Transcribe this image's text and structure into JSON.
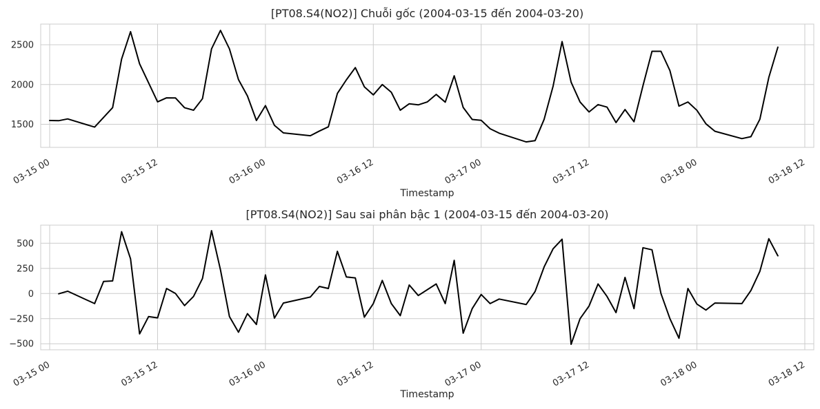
{
  "chart_data": [
    {
      "type": "line",
      "title": "[PT08.S4(NO2)] Chuỗi gốc (2004-03-15 đến 2004-03-20)",
      "xlabel": "Timestamp",
      "ylabel": "",
      "grid": true,
      "legend": "none",
      "line_color": "#000000",
      "x_start": "2004-03-14 23:00",
      "x_end": "2004-03-18 13:00",
      "ylim": [
        1210,
        2760
      ],
      "xticks": [
        {
          "time": "2004-03-15 00:00",
          "label": "03-15 00"
        },
        {
          "time": "2004-03-15 12:00",
          "label": "03-15 12"
        },
        {
          "time": "2004-03-16 00:00",
          "label": "03-16 00"
        },
        {
          "time": "2004-03-16 12:00",
          "label": "03-16 12"
        },
        {
          "time": "2004-03-17 00:00",
          "label": "03-17 00"
        },
        {
          "time": "2004-03-17 12:00",
          "label": "03-17 12"
        },
        {
          "time": "2004-03-18 00:00",
          "label": "03-18 00"
        },
        {
          "time": "2004-03-18 12:00",
          "label": "03-18 12"
        }
      ],
      "yticks": [
        {
          "value": 1500,
          "label": "1500"
        },
        {
          "value": 2000,
          "label": "2000"
        },
        {
          "value": 2500,
          "label": "2500"
        }
      ],
      "series": [
        {
          "x": [
            "2004-03-15 00:00",
            "2004-03-15 01:00",
            "2004-03-15 02:00",
            "2004-03-15 05:00",
            "2004-03-15 07:00",
            "2004-03-15 08:00",
            "2004-03-15 09:00",
            "2004-03-15 10:00",
            "2004-03-15 12:00",
            "2004-03-15 13:00",
            "2004-03-15 14:00",
            "2004-03-15 15:00",
            "2004-03-15 16:00",
            "2004-03-15 17:00",
            "2004-03-15 18:00",
            "2004-03-15 19:00",
            "2004-03-15 20:00",
            "2004-03-15 21:00",
            "2004-03-15 22:00",
            "2004-03-15 23:00",
            "2004-03-16 00:00",
            "2004-03-16 01:00",
            "2004-03-16 02:00",
            "2004-03-16 05:00",
            "2004-03-16 06:00",
            "2004-03-16 07:00",
            "2004-03-16 08:00",
            "2004-03-16 09:00",
            "2004-03-16 10:00",
            "2004-03-16 11:00",
            "2004-03-16 12:00",
            "2004-03-16 13:00",
            "2004-03-16 14:00",
            "2004-03-16 15:00",
            "2004-03-16 16:00",
            "2004-03-16 17:00",
            "2004-03-16 18:00",
            "2004-03-16 19:00",
            "2004-03-16 20:00",
            "2004-03-16 21:00",
            "2004-03-16 22:00",
            "2004-03-16 23:00",
            "2004-03-17 00:00",
            "2004-03-17 01:00",
            "2004-03-17 02:00",
            "2004-03-17 05:00",
            "2004-03-17 06:00",
            "2004-03-17 07:00",
            "2004-03-17 08:00",
            "2004-03-17 09:00",
            "2004-03-17 10:00",
            "2004-03-17 11:00",
            "2004-03-17 12:00",
            "2004-03-17 13:00",
            "2004-03-17 14:00",
            "2004-03-17 15:00",
            "2004-03-17 16:00",
            "2004-03-17 17:00",
            "2004-03-17 18:00",
            "2004-03-17 19:00",
            "2004-03-17 20:00",
            "2004-03-17 21:00",
            "2004-03-17 22:00",
            "2004-03-17 23:00",
            "2004-03-18 00:00",
            "2004-03-18 01:00",
            "2004-03-18 02:00",
            "2004-03-18 05:00",
            "2004-03-18 06:00",
            "2004-03-18 07:00",
            "2004-03-18 08:00",
            "2004-03-18 09:00"
          ],
          "values": [
            1548,
            1545,
            1568,
            1465,
            1710,
            2320,
            2665,
            2260,
            1782,
            1833,
            1831,
            1709,
            1677,
            1822,
            2448,
            2680,
            2448,
            2062,
            1856,
            1548,
            1735,
            1487,
            1392,
            1356,
            1415,
            1468,
            1888,
            2059,
            2213,
            1971,
            1870,
            2000,
            1903,
            1677,
            1758,
            1744,
            1781,
            1876,
            1778,
            2110,
            1712,
            1561,
            1550,
            1444,
            1388,
            1278,
            1295,
            1562,
            1980,
            2540,
            2030,
            1780,
            1655,
            1748,
            1716,
            1522,
            1685,
            1532,
            1985,
            2418,
            2418,
            2175,
            1729,
            1781,
            1676,
            1506,
            1413,
            1320,
            1344,
            1563,
            2090,
            2470
          ]
        }
      ]
    },
    {
      "type": "line",
      "title": "[PT08.S4(NO2)] Sau sai phân bậc 1 (2004-03-15 đến 2004-03-20)",
      "xlabel": "Timestamp",
      "ylabel": "",
      "grid": true,
      "legend": "none",
      "line_color": "#000000",
      "x_start": "2004-03-14 23:00",
      "x_end": "2004-03-18 13:00",
      "ylim": [
        -560,
        680
      ],
      "xticks": [
        {
          "time": "2004-03-15 00:00",
          "label": "03-15 00"
        },
        {
          "time": "2004-03-15 12:00",
          "label": "03-15 12"
        },
        {
          "time": "2004-03-16 00:00",
          "label": "03-16 00"
        },
        {
          "time": "2004-03-16 12:00",
          "label": "03-16 12"
        },
        {
          "time": "2004-03-17 00:00",
          "label": "03-17 00"
        },
        {
          "time": "2004-03-17 12:00",
          "label": "03-17 12"
        },
        {
          "time": "2004-03-18 00:00",
          "label": "03-18 00"
        },
        {
          "time": "2004-03-18 12:00",
          "label": "03-18 12"
        }
      ],
      "yticks": [
        {
          "value": -500,
          "label": "−500"
        },
        {
          "value": -250,
          "label": "−250"
        },
        {
          "value": 0,
          "label": "0"
        },
        {
          "value": 250,
          "label": "250"
        },
        {
          "value": 500,
          "label": "500"
        }
      ],
      "series": [
        {
          "x": [
            "2004-03-15 01:00",
            "2004-03-15 02:00",
            "2004-03-15 05:00",
            "2004-03-15 06:00",
            "2004-03-15 07:00",
            "2004-03-15 08:00",
            "2004-03-15 09:00",
            "2004-03-15 10:00",
            "2004-03-15 11:00",
            "2004-03-15 12:00",
            "2004-03-15 13:00",
            "2004-03-15 14:00",
            "2004-03-15 15:00",
            "2004-03-15 16:00",
            "2004-03-15 17:00",
            "2004-03-15 18:00",
            "2004-03-15 19:00",
            "2004-03-15 20:00",
            "2004-03-15 21:00",
            "2004-03-15 22:00",
            "2004-03-15 23:00",
            "2004-03-16 00:00",
            "2004-03-16 01:00",
            "2004-03-16 02:00",
            "2004-03-16 05:00",
            "2004-03-16 06:00",
            "2004-03-16 07:00",
            "2004-03-16 08:00",
            "2004-03-16 09:00",
            "2004-03-16 10:00",
            "2004-03-16 11:00",
            "2004-03-16 12:00",
            "2004-03-16 13:00",
            "2004-03-16 14:00",
            "2004-03-16 15:00",
            "2004-03-16 16:00",
            "2004-03-16 17:00",
            "2004-03-16 19:00",
            "2004-03-16 20:00",
            "2004-03-16 21:00",
            "2004-03-16 22:00",
            "2004-03-16 23:00",
            "2004-03-17 00:00",
            "2004-03-17 01:00",
            "2004-03-17 02:00",
            "2004-03-17 05:00",
            "2004-03-17 06:00",
            "2004-03-17 07:00",
            "2004-03-17 08:00",
            "2004-03-17 09:00",
            "2004-03-17 10:00",
            "2004-03-17 11:00",
            "2004-03-17 12:00",
            "2004-03-17 13:00",
            "2004-03-17 14:00",
            "2004-03-17 15:00",
            "2004-03-17 16:00",
            "2004-03-17 17:00",
            "2004-03-17 18:00",
            "2004-03-17 19:00",
            "2004-03-17 20:00",
            "2004-03-17 21:00",
            "2004-03-17 22:00",
            "2004-03-17 23:00",
            "2004-03-18 00:00",
            "2004-03-18 01:00",
            "2004-03-18 02:00",
            "2004-03-18 05:00",
            "2004-03-18 06:00",
            "2004-03-18 07:00",
            "2004-03-18 08:00",
            "2004-03-18 09:00"
          ],
          "values": [
            -3,
            23,
            -100,
            120,
            125,
            615,
            345,
            -402,
            -230,
            -242,
            50,
            0,
            -120,
            -30,
            150,
            625,
            235,
            -230,
            -385,
            -200,
            -308,
            185,
            -245,
            -95,
            -35,
            70,
            50,
            420,
            165,
            155,
            -235,
            -100,
            130,
            -100,
            -220,
            85,
            -20,
            95,
            -100,
            330,
            -395,
            -150,
            -10,
            -100,
            -55,
            -110,
            20,
            265,
            445,
            540,
            -505,
            -250,
            -125,
            95,
            -30,
            -190,
            160,
            -150,
            455,
            435,
            0,
            -250,
            -445,
            50,
            -105,
            -165,
            -95,
            -100,
            30,
            220,
            545,
            375
          ]
        }
      ]
    }
  ]
}
